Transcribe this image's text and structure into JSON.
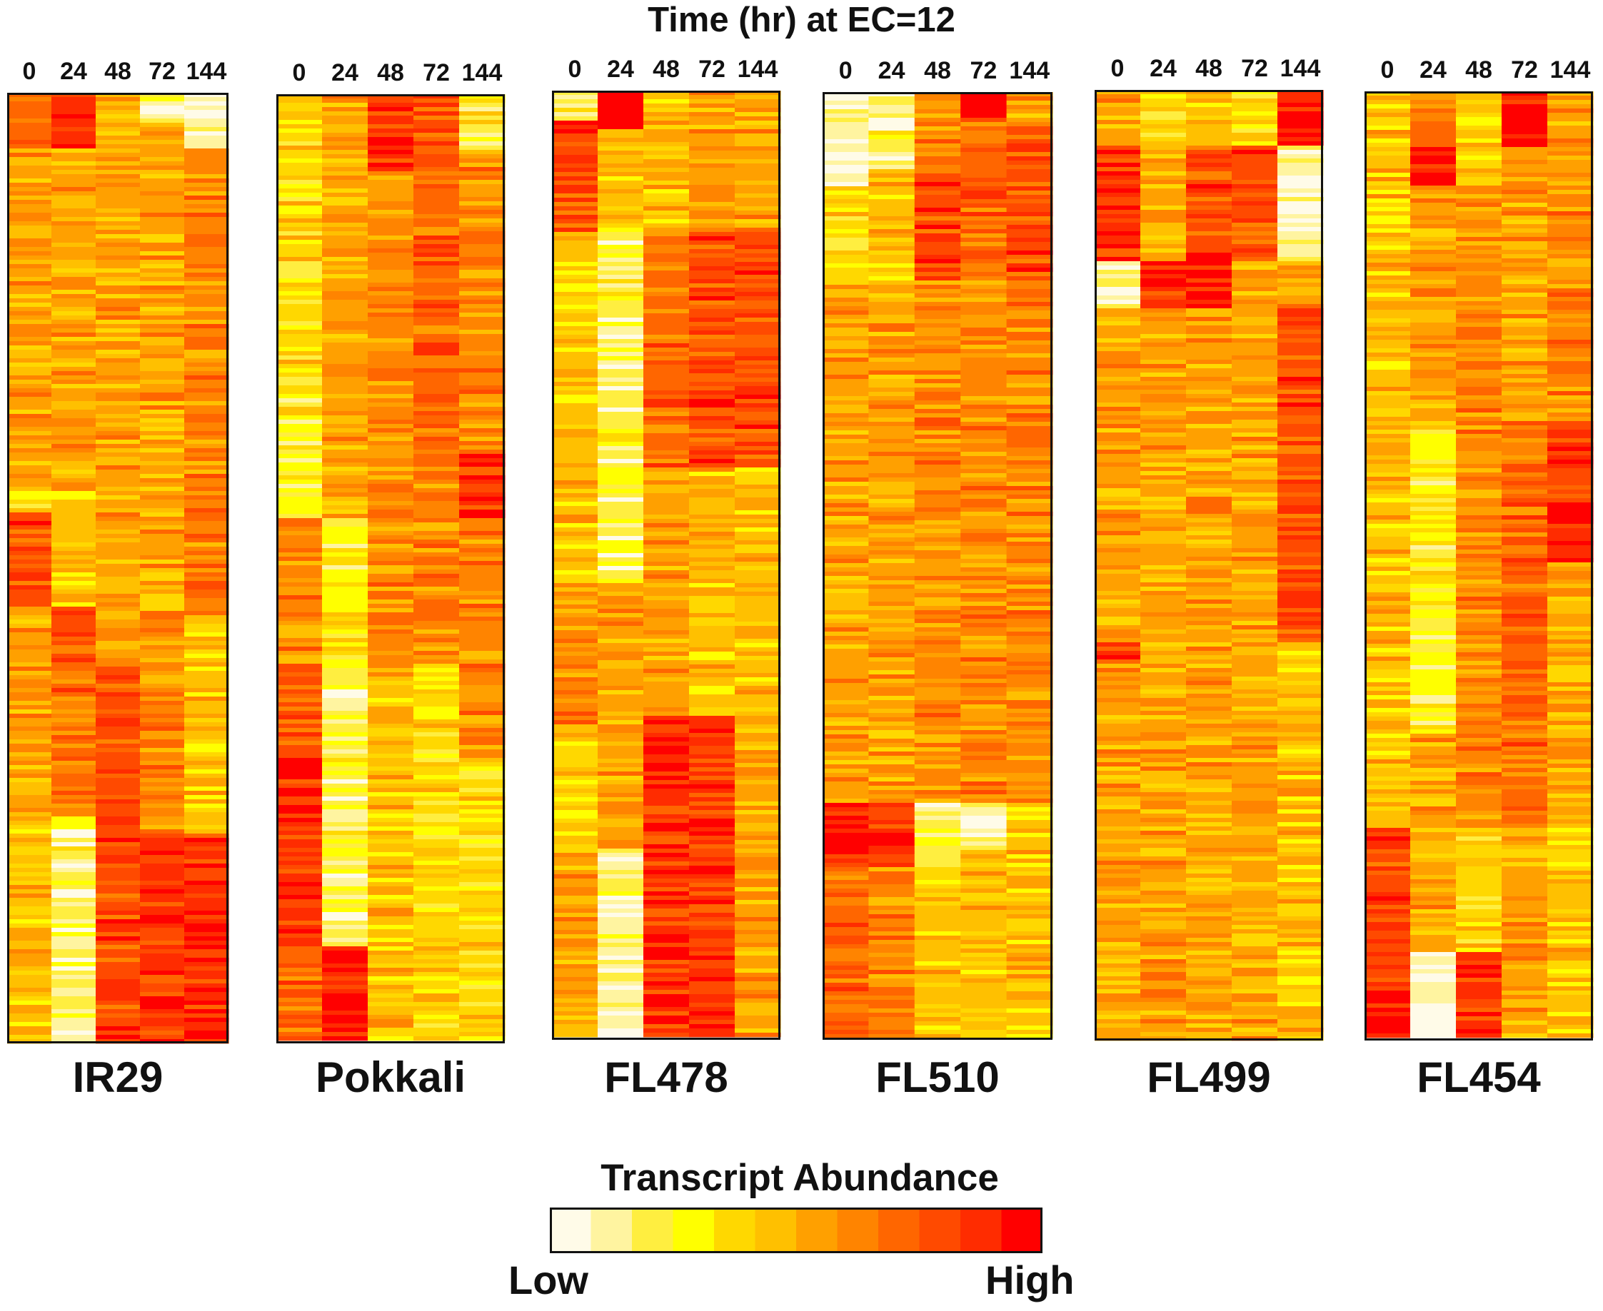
{
  "chart_data": {
    "type": "heatmap",
    "title": "Time (hr) at EC=12",
    "x_categories": [
      "0",
      "24",
      "48",
      "72",
      "144"
    ],
    "legend": {
      "title": "Transcript Abundance",
      "low_label": "Low",
      "high_label": "High",
      "colors": [
        "#fffbe8",
        "#fff4a0",
        "#ffee40",
        "#ffff00",
        "#ffd800",
        "#ffc000",
        "#ffa000",
        "#ff8400",
        "#ff6600",
        "#ff4a00",
        "#ff2c00",
        "#ff0000"
      ]
    },
    "panels": [
      {
        "name": "IR29",
        "segments": [
          [
            [
              0.0,
              0.06,
              8
            ],
            [
              0.06,
              0.42,
              6
            ],
            [
              0.42,
              0.44,
              3
            ],
            [
              0.44,
              0.54,
              9
            ],
            [
              0.54,
              0.76,
              6
            ],
            [
              0.76,
              1.0,
              5
            ]
          ],
          [
            [
              0.0,
              0.06,
              10
            ],
            [
              0.06,
              0.42,
              6
            ],
            [
              0.42,
              0.54,
              5
            ],
            [
              0.54,
              0.6,
              9
            ],
            [
              0.6,
              0.76,
              8
            ],
            [
              0.76,
              0.84,
              2
            ],
            [
              0.84,
              1.0,
              1
            ]
          ],
          [
            [
              0.0,
              0.6,
              6
            ],
            [
              0.6,
              0.8,
              9
            ],
            [
              0.8,
              1.0,
              9
            ]
          ],
          [
            [
              0.0,
              0.03,
              2
            ],
            [
              0.03,
              0.55,
              6
            ],
            [
              0.55,
              0.78,
              7
            ],
            [
              0.78,
              1.0,
              10
            ]
          ],
          [
            [
              0.0,
              0.06,
              1
            ],
            [
              0.06,
              0.55,
              7
            ],
            [
              0.55,
              0.78,
              5
            ],
            [
              0.78,
              1.0,
              10
            ]
          ]
        ]
      },
      {
        "name": "Pokkali",
        "segments": [
          [
            [
              0.0,
              0.3,
              4
            ],
            [
              0.3,
              0.45,
              3
            ],
            [
              0.45,
              0.6,
              7
            ],
            [
              0.6,
              0.7,
              9
            ],
            [
              0.7,
              0.9,
              10
            ],
            [
              0.9,
              1.0,
              8
            ]
          ],
          [
            [
              0.0,
              0.45,
              6
            ],
            [
              0.45,
              0.6,
              3
            ],
            [
              0.6,
              0.9,
              2
            ],
            [
              0.9,
              1.0,
              11
            ]
          ],
          [
            [
              0.0,
              0.08,
              10
            ],
            [
              0.08,
              0.35,
              7
            ],
            [
              0.35,
              0.6,
              7
            ],
            [
              0.6,
              1.0,
              5
            ]
          ],
          [
            [
              0.0,
              0.08,
              9
            ],
            [
              0.08,
              0.4,
              8
            ],
            [
              0.4,
              0.6,
              7
            ],
            [
              0.6,
              1.0,
              4
            ]
          ],
          [
            [
              0.0,
              0.06,
              3
            ],
            [
              0.06,
              0.38,
              7
            ],
            [
              0.38,
              0.45,
              10
            ],
            [
              0.45,
              0.7,
              7
            ],
            [
              0.7,
              1.0,
              4
            ]
          ]
        ]
      },
      {
        "name": "FL478",
        "segments": [
          [
            [
              0.0,
              0.03,
              2
            ],
            [
              0.03,
              0.15,
              9
            ],
            [
              0.15,
              0.52,
              5
            ],
            [
              0.52,
              0.68,
              7
            ],
            [
              0.68,
              0.8,
              4
            ],
            [
              0.8,
              1.0,
              6
            ]
          ],
          [
            [
              0.0,
              0.04,
              11
            ],
            [
              0.04,
              0.15,
              5
            ],
            [
              0.15,
              0.52,
              2
            ],
            [
              0.52,
              0.74,
              6
            ],
            [
              0.74,
              0.8,
              6
            ],
            [
              0.8,
              1.0,
              1
            ]
          ],
          [
            [
              0.0,
              0.15,
              5
            ],
            [
              0.15,
              0.4,
              8
            ],
            [
              0.4,
              0.66,
              6
            ],
            [
              0.66,
              1.0,
              10
            ]
          ],
          [
            [
              0.0,
              0.15,
              6
            ],
            [
              0.15,
              0.4,
              9
            ],
            [
              0.4,
              0.66,
              5
            ],
            [
              0.66,
              1.0,
              10
            ]
          ],
          [
            [
              0.0,
              0.15,
              6
            ],
            [
              0.15,
              0.4,
              9
            ],
            [
              0.4,
              0.66,
              5
            ],
            [
              0.66,
              1.0,
              6
            ]
          ]
        ]
      },
      {
        "name": "FL510",
        "segments": [
          [
            [
              0.0,
              0.1,
              1
            ],
            [
              0.1,
              0.2,
              4
            ],
            [
              0.2,
              0.75,
              6
            ],
            [
              0.75,
              0.82,
              11
            ],
            [
              0.82,
              1.0,
              8
            ]
          ],
          [
            [
              0.0,
              0.08,
              2
            ],
            [
              0.08,
              0.2,
              5
            ],
            [
              0.2,
              0.75,
              6
            ],
            [
              0.75,
              0.82,
              10
            ],
            [
              0.82,
              1.0,
              7
            ]
          ],
          [
            [
              0.0,
              0.08,
              7
            ],
            [
              0.08,
              0.2,
              9
            ],
            [
              0.2,
              0.75,
              7
            ],
            [
              0.75,
              0.82,
              2
            ],
            [
              0.82,
              1.0,
              5
            ]
          ],
          [
            [
              0.0,
              0.03,
              11
            ],
            [
              0.03,
              0.2,
              8
            ],
            [
              0.2,
              0.75,
              7
            ],
            [
              0.75,
              0.8,
              1
            ],
            [
              0.8,
              1.0,
              5
            ]
          ],
          [
            [
              0.0,
              0.03,
              6
            ],
            [
              0.03,
              0.2,
              9
            ],
            [
              0.2,
              0.75,
              7
            ],
            [
              0.75,
              1.0,
              5
            ]
          ]
        ]
      },
      {
        "name": "FL499",
        "segments": [
          [
            [
              0.0,
              0.06,
              6
            ],
            [
              0.06,
              0.18,
              10
            ],
            [
              0.18,
              0.23,
              1
            ],
            [
              0.23,
              0.58,
              6
            ],
            [
              0.58,
              0.6,
              10
            ],
            [
              0.6,
              1.0,
              6
            ]
          ],
          [
            [
              0.0,
              0.06,
              4
            ],
            [
              0.06,
              0.18,
              6
            ],
            [
              0.18,
              0.23,
              10
            ],
            [
              0.23,
              1.0,
              6
            ]
          ],
          [
            [
              0.0,
              0.06,
              5
            ],
            [
              0.06,
              0.17,
              9
            ],
            [
              0.17,
              0.23,
              11
            ],
            [
              0.23,
              1.0,
              6
            ]
          ],
          [
            [
              0.0,
              0.06,
              4
            ],
            [
              0.06,
              0.18,
              9
            ],
            [
              0.18,
              1.0,
              6
            ]
          ],
          [
            [
              0.0,
              0.06,
              11
            ],
            [
              0.06,
              0.18,
              1
            ],
            [
              0.18,
              0.23,
              6
            ],
            [
              0.23,
              0.58,
              9
            ],
            [
              0.58,
              1.0,
              5
            ]
          ]
        ]
      },
      {
        "name": "FL454",
        "segments": [
          [
            [
              0.0,
              0.78,
              5
            ],
            [
              0.78,
              0.95,
              9
            ],
            [
              0.95,
              1.0,
              11
            ]
          ],
          [
            [
              0.0,
              0.06,
              8
            ],
            [
              0.06,
              0.1,
              11
            ],
            [
              0.1,
              0.35,
              6
            ],
            [
              0.35,
              0.68,
              3
            ],
            [
              0.68,
              0.91,
              6
            ],
            [
              0.91,
              1.0,
              1
            ]
          ],
          [
            [
              0.0,
              0.1,
              5
            ],
            [
              0.1,
              0.78,
              7
            ],
            [
              0.78,
              0.91,
              4
            ],
            [
              0.91,
              1.0,
              10
            ]
          ],
          [
            [
              0.0,
              0.06,
              11
            ],
            [
              0.06,
              0.35,
              6
            ],
            [
              0.35,
              0.78,
              8
            ],
            [
              0.78,
              1.0,
              6
            ]
          ],
          [
            [
              0.0,
              0.1,
              6
            ],
            [
              0.1,
              0.35,
              7
            ],
            [
              0.35,
              0.5,
              10
            ],
            [
              0.5,
              0.78,
              6
            ],
            [
              0.78,
              1.0,
              5
            ]
          ]
        ]
      }
    ]
  }
}
